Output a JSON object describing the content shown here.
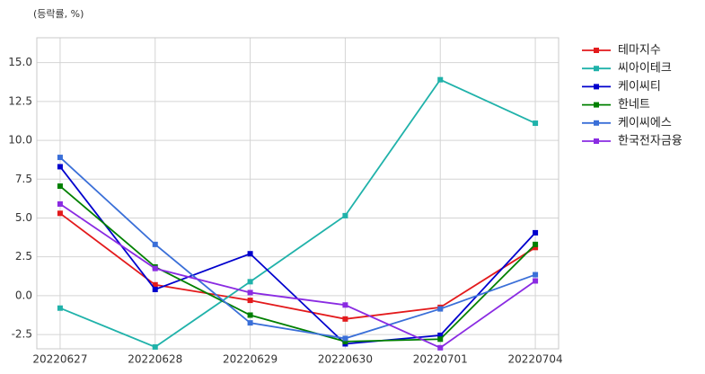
{
  "chart_data": {
    "type": "line",
    "ylabel": "(등락률, %)",
    "categories": [
      "20220627",
      "20220628",
      "20220629",
      "20220630",
      "20220701",
      "20220704"
    ],
    "series": [
      {
        "name": "테마지수",
        "color": "#e31a1c",
        "values": [
          5.3,
          0.7,
          -0.3,
          -1.5,
          -0.75,
          3.1
        ]
      },
      {
        "name": "씨아이테크",
        "color": "#20b2aa",
        "values": [
          -0.8,
          -3.3,
          0.9,
          5.15,
          13.9,
          11.1
        ]
      },
      {
        "name": "케이씨티",
        "color": "#0000cd",
        "values": [
          8.3,
          0.4,
          2.7,
          -3.1,
          -2.55,
          4.05
        ]
      },
      {
        "name": "한네트",
        "color": "#008000",
        "values": [
          7.05,
          1.85,
          -1.25,
          -2.95,
          -2.8,
          3.3
        ]
      },
      {
        "name": "케이씨에스",
        "color": "#3a6fd8",
        "values": [
          8.9,
          3.3,
          -1.75,
          -2.75,
          -0.85,
          1.35
        ]
      },
      {
        "name": "한국전자금융",
        "color": "#8a2be2",
        "values": [
          5.9,
          1.75,
          0.2,
          -0.6,
          -3.35,
          0.95
        ]
      }
    ],
    "ylim": [
      -3.42,
      16.6
    ],
    "yticks": [
      -2.5,
      {
        "value": 0,
        "label": "0.0"
      },
      2.5,
      {
        "value": 5,
        "label": "5.0"
      },
      7.5,
      {
        "value": 10,
        "label": "10.0"
      },
      12.5,
      {
        "value": 15,
        "label": "15.0"
      }
    ],
    "grid": true,
    "legend": "outside-right"
  }
}
